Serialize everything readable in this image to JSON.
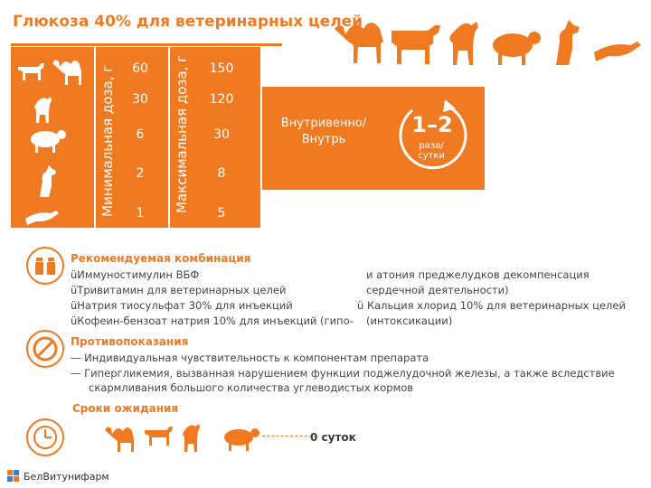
{
  "title": "Глюкоза 40% для ветеринарных целей",
  "dose_table": {
    "min_label": "Минимальная доза, г",
    "max_label": "Максимальная доза, г",
    "min_values": [
      "60",
      "30",
      "6",
      "2",
      "1"
    ],
    "max_values": [
      "150",
      "120",
      "30",
      "8",
      "5"
    ]
  },
  "route": "Внутривенно/ Внутрь",
  "frequency": {
    "value": "1–2",
    "unit": "раза/ сутки"
  },
  "combination": {
    "heading": "Рекомендуемая комбинация",
    "left": [
      "üИммуностимулин ВБФ",
      "üТривитамин для ветеринарных целей",
      "üНатрия тиосульфат 30% для инъекций",
      "üКофеин-бензоат натрия 10% для инъекций (гипо-"
    ],
    "right": [
      "и атония преджелудков декомпенсация",
      "сердечной деятельности)",
      "ü Кальция хлорид 10% для ветеринарных целей",
      "(интоксикации)"
    ]
  },
  "contraindications": {
    "heading": "Противопоказания",
    "items": [
      "— Индивидуальная чувствительность к компонентам препарата",
      "— Гипергликемия, вызванная нарушением функции поджелудочной железы, а также вследствие",
      "скармливания большого количества углеводистых кормов"
    ]
  },
  "withdrawal": {
    "heading": "Сроки ожидания",
    "value": "0 суток"
  },
  "brand": "БелВитунифарм",
  "icons": [
    "camel-icon",
    "cow-icon",
    "horse-icon",
    "sheep-icon",
    "dog-icon",
    "ferret-icon",
    "clock-icon",
    "no-icon",
    "vials-icon"
  ],
  "accent": "#f07a21"
}
